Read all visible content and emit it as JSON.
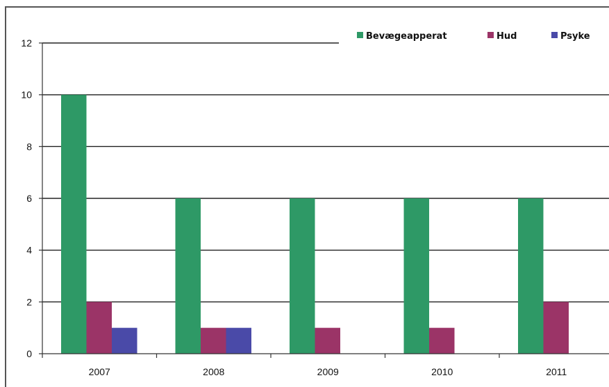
{
  "chart_data": {
    "type": "bar",
    "title": "",
    "xlabel": "",
    "ylabel": "",
    "categories": [
      "2007",
      "2008",
      "2009",
      "2010",
      "2011"
    ],
    "series": [
      {
        "name": "Bevægeapperat",
        "color": "#2e9966",
        "values": [
          10,
          6,
          6,
          6,
          6
        ]
      },
      {
        "name": "Hud",
        "color": "#9b3467",
        "values": [
          2,
          1,
          1,
          1,
          2
        ]
      },
      {
        "name": "Psyke",
        "color": "#4a4aa8",
        "values": [
          1,
          1,
          0,
          0,
          0
        ]
      }
    ],
    "ylim": [
      0,
      12
    ],
    "yticks": [
      0,
      2,
      4,
      6,
      8,
      10,
      12
    ],
    "grid": true,
    "legend": "top-right"
  }
}
